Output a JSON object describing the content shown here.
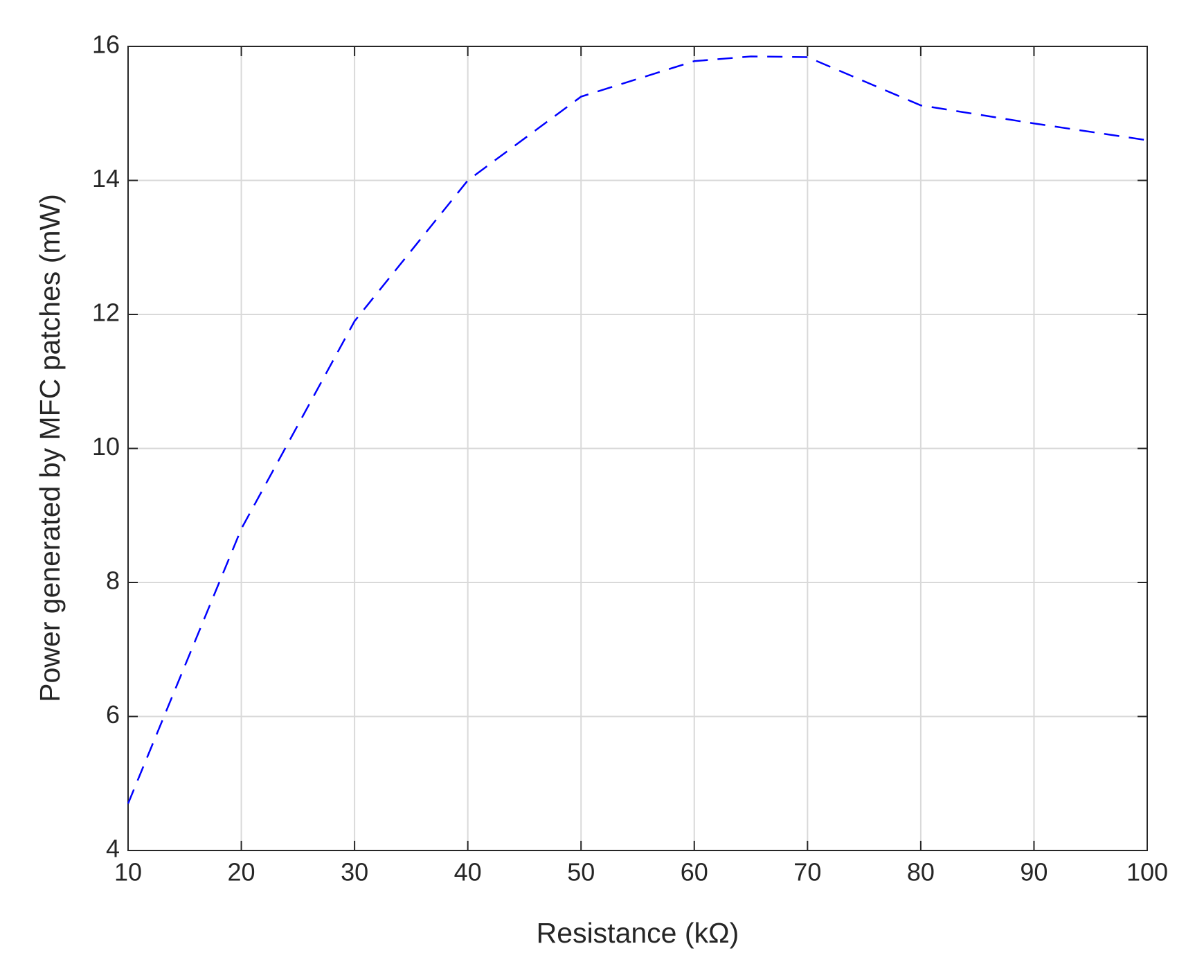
{
  "chart_data": {
    "type": "line",
    "x_label": "Resistance (kΩ)",
    "y_label": "Power generated by MFC patches (mW)",
    "x": [
      10,
      20,
      30,
      40,
      50,
      60,
      65,
      70,
      80,
      90,
      100
    ],
    "series": [
      {
        "color": "#0000ff",
        "dash": true,
        "values": [
          4.7,
          8.8,
          11.9,
          14.0,
          15.25,
          15.78,
          15.85,
          15.84,
          15.12,
          14.85,
          14.6
        ]
      }
    ],
    "xlim": [
      10,
      100
    ],
    "xticks": [
      10,
      20,
      30,
      40,
      50,
      60,
      70,
      80,
      90,
      100
    ],
    "ylim": [
      4,
      16
    ],
    "yticks": [
      4,
      6,
      8,
      10,
      12,
      14,
      16
    ],
    "grid": true
  }
}
